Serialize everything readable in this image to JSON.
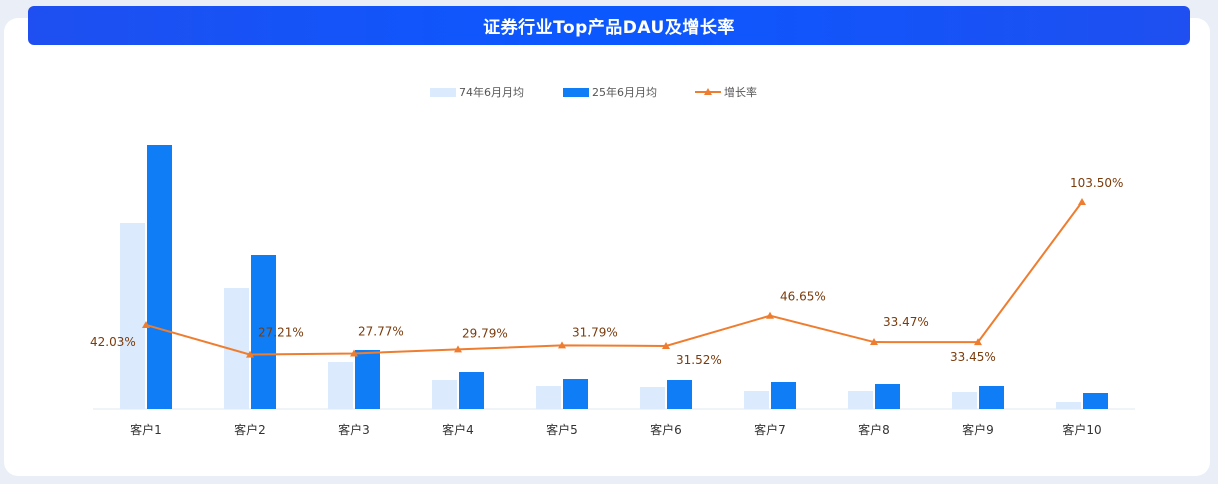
{
  "chart_data": {
    "type": "bar",
    "title": "证券行业Top产品DAU及增长率",
    "categories": [
      "客户1",
      "客户2",
      "客户3",
      "客户4",
      "客户5",
      "客户6",
      "客户7",
      "客户8",
      "客户9",
      "客户10"
    ],
    "series": [
      {
        "name": "74年6月月均",
        "type": "bar",
        "color": "#dbeafc",
        "values": [
          186,
          121,
          47,
          29,
          23,
          22,
          18,
          18,
          17,
          7
        ]
      },
      {
        "name": "25年6月月均",
        "type": "bar",
        "color": "#0f7ef6",
        "values": [
          264,
          154,
          59,
          37,
          30,
          29,
          27,
          25,
          23,
          16
        ]
      },
      {
        "name": "增长率",
        "type": "line",
        "color": "#ef7d2f",
        "values": [
          42.03,
          27.21,
          27.77,
          29.79,
          31.79,
          31.52,
          46.65,
          33.47,
          33.45,
          103.5
        ]
      }
    ],
    "data_labels": [
      "42.03%",
      "27.21%",
      "27.77%",
      "29.79%",
      "31.79%",
      "31.52%",
      "46.65%",
      "33.47%",
      "33.45%",
      "103.50%"
    ],
    "ylim_bar": [
      0,
      300
    ],
    "ylim_line": [
      0,
      150
    ],
    "grid": false,
    "legend": "top-center"
  }
}
